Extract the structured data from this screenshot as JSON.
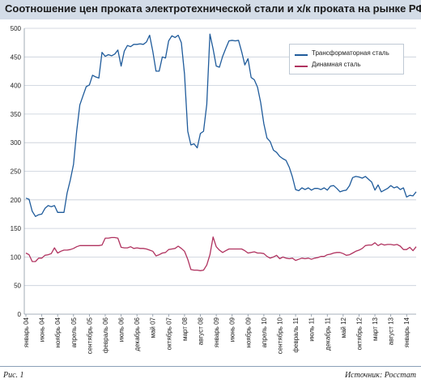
{
  "header": {
    "title": "Соотношение цен проката электротехнической стали и х/к проката на рынке РФ, %"
  },
  "footer": {
    "figure": "Рис. 1",
    "source": "Источник: Росстат"
  },
  "colors": {
    "header_bg": "#d3dce7",
    "grid": "#c6ced8",
    "transformer": "#1f5b9b",
    "dynamo": "#b0325f"
  },
  "chart_data": {
    "type": "line",
    "title": "Соотношение цен проката электротехнической стали и х/к проката на рынке РФ, %",
    "xlabel": "",
    "ylabel": "",
    "ylim": [
      0,
      500
    ],
    "yticks": [
      0,
      50,
      100,
      150,
      200,
      250,
      300,
      350,
      400,
      450,
      500
    ],
    "grid": true,
    "legend_position": "top-right",
    "x_start": "январь 04",
    "x_end": "апрель 14",
    "xtick_labels": [
      "январь 04",
      "июнь 04",
      "ноябрь 04",
      "апрель 05",
      "сентябрь 05",
      "февраль 06",
      "июль 06",
      "декабрь 06",
      "май 07",
      "октябрь 07",
      "март 08",
      "август 08",
      "январь 09",
      "июнь 09",
      "ноябрь 09",
      "апрель 10",
      "сентябрь 10",
      "февраль 11",
      "июль 11",
      "декабрь 11",
      "май 12",
      "октябрь 12",
      "март 13",
      "август 13",
      "январь 14"
    ],
    "series": [
      {
        "name": "Трансформаторная сталь",
        "values": [
          203,
          201,
          180,
          171,
          174,
          175,
          185,
          190,
          188,
          190,
          178,
          178,
          178,
          212,
          235,
          262,
          320,
          366,
          382,
          398,
          401,
          418,
          415,
          413,
          458,
          451,
          454,
          452,
          455,
          462,
          434,
          460,
          470,
          468,
          472,
          472,
          473,
          472,
          476,
          488,
          460,
          425,
          425,
          450,
          448,
          478,
          487,
          484,
          488,
          475,
          420,
          320,
          296,
          298,
          291,
          316,
          320,
          367,
          490,
          464,
          434,
          432,
          451,
          465,
          478,
          479,
          478,
          479,
          459,
          436,
          447,
          414,
          410,
          397,
          370,
          333,
          308,
          302,
          287,
          283,
          276,
          272,
          269,
          257,
          240,
          218,
          216,
          221,
          218,
          221,
          217,
          220,
          220,
          218,
          221,
          217,
          224,
          225,
          220,
          214,
          216,
          217,
          225,
          239,
          241,
          240,
          238,
          241,
          236,
          231,
          217,
          226,
          214,
          217,
          220,
          225,
          221,
          223,
          218,
          221,
          205,
          208,
          207,
          214
        ]
      },
      {
        "name": "Динамная сталь",
        "values": [
          107,
          104,
          92,
          92,
          98,
          98,
          103,
          104,
          106,
          116,
          107,
          110,
          112,
          112,
          113,
          115,
          118,
          120,
          120,
          120,
          120,
          120,
          120,
          120,
          121,
          133,
          133,
          134,
          134,
          133,
          117,
          116,
          116,
          118,
          115,
          116,
          115,
          115,
          114,
          112,
          110,
          102,
          104,
          107,
          108,
          113,
          114,
          115,
          119,
          115,
          110,
          96,
          78,
          77,
          77,
          76,
          77,
          86,
          104,
          135,
          118,
          112,
          108,
          111,
          114,
          114,
          114,
          114,
          114,
          111,
          107,
          108,
          109,
          107,
          107,
          106,
          101,
          98,
          100,
          103,
          97,
          100,
          98,
          97,
          98,
          94,
          96,
          98,
          97,
          98,
          96,
          98,
          99,
          101,
          101,
          104,
          105,
          107,
          108,
          108,
          106,
          103,
          104,
          107,
          110,
          112,
          115,
          120,
          121,
          121,
          125,
          120,
          123,
          121,
          122,
          122,
          121,
          122,
          119,
          113,
          113,
          117,
          111,
          118
        ]
      }
    ]
  }
}
